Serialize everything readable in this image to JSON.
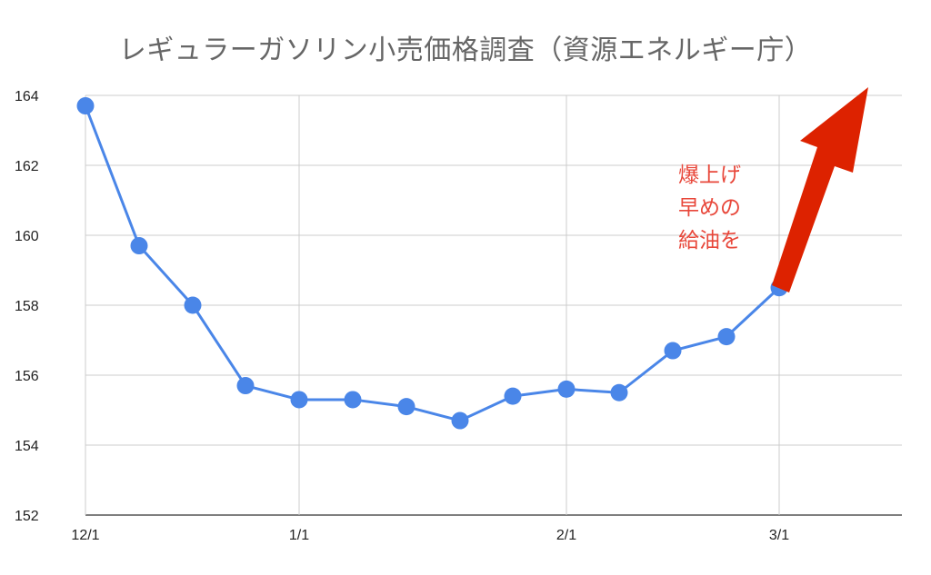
{
  "chart_data": {
    "type": "line",
    "title": "レギュラーガソリン小売価格調査（資源エネルギー庁）",
    "xlabel": "",
    "ylabel": "",
    "x": [
      "12/1",
      "",
      "",
      "",
      "1/1",
      "",
      "",
      "",
      "",
      "2/1",
      "",
      "",
      "",
      "3/1"
    ],
    "x_ticks": [
      "12/1",
      "1/1",
      "2/1",
      "3/1"
    ],
    "ylim": [
      152,
      164
    ],
    "y_ticks": [
      152,
      154,
      156,
      158,
      160,
      162,
      164
    ],
    "grid": true,
    "series": [
      {
        "color": "#4a86e8",
        "values": [
          163.7,
          159.7,
          158.0,
          155.7,
          155.3,
          155.3,
          155.1,
          154.7,
          155.4,
          155.6,
          155.5,
          156.7,
          157.1,
          158.5
        ]
      }
    ],
    "annotation": {
      "lines": [
        "爆上げ",
        "早めの",
        "給油を"
      ],
      "color": "#e8473a",
      "arrow_color": "#dd2200"
    }
  }
}
